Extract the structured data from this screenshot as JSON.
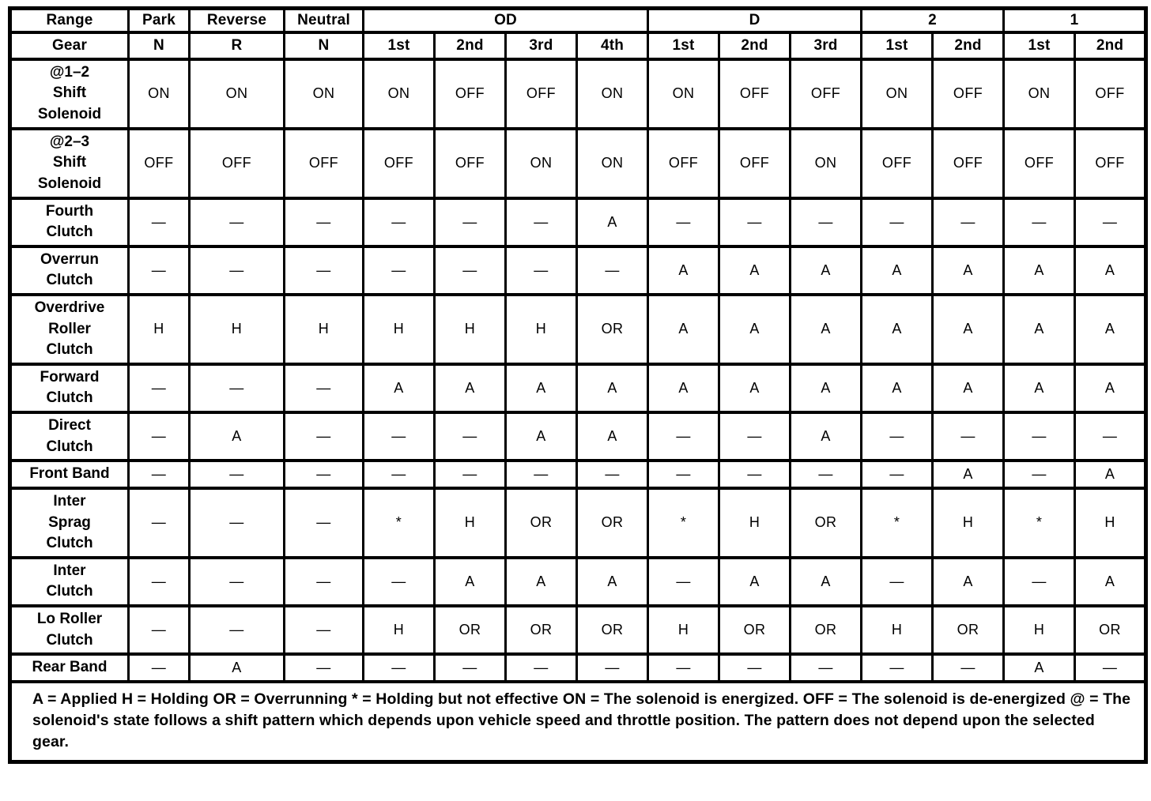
{
  "table": {
    "range_label": "Range",
    "gear_label": "Gear",
    "groups": [
      {
        "label": "Park",
        "gears": [
          "N"
        ]
      },
      {
        "label": "Reverse",
        "gears": [
          "R"
        ]
      },
      {
        "label": "Neutral",
        "gears": [
          "N"
        ]
      },
      {
        "label": "OD",
        "gears": [
          "1st",
          "2nd",
          "3rd",
          "4th"
        ]
      },
      {
        "label": "D",
        "gears": [
          "1st",
          "2nd",
          "3rd"
        ]
      },
      {
        "label": "2",
        "gears": [
          "1st",
          "2nd"
        ]
      },
      {
        "label": "1",
        "gears": [
          "1st",
          "2nd"
        ]
      }
    ],
    "rows": [
      {
        "label": "@1–2\nShift\nSolenoid",
        "values": [
          "ON",
          "ON",
          "ON",
          "ON",
          "OFF",
          "OFF",
          "ON",
          "ON",
          "OFF",
          "OFF",
          "ON",
          "OFF",
          "ON",
          "OFF"
        ]
      },
      {
        "label": "@2–3\nShift\nSolenoid",
        "values": [
          "OFF",
          "OFF",
          "OFF",
          "OFF",
          "OFF",
          "ON",
          "ON",
          "OFF",
          "OFF",
          "ON",
          "OFF",
          "OFF",
          "OFF",
          "OFF"
        ]
      },
      {
        "label": "Fourth\nClutch",
        "values": [
          "—",
          "—",
          "—",
          "—",
          "—",
          "—",
          "A",
          "—",
          "—",
          "—",
          "—",
          "—",
          "—",
          "—"
        ]
      },
      {
        "label": "Overrun\nClutch",
        "values": [
          "—",
          "—",
          "—",
          "—",
          "—",
          "—",
          "—",
          "A",
          "A",
          "A",
          "A",
          "A",
          "A",
          "A"
        ]
      },
      {
        "label": "Overdrive\nRoller\nClutch",
        "values": [
          "H",
          "H",
          "H",
          "H",
          "H",
          "H",
          "OR",
          "A",
          "A",
          "A",
          "A",
          "A",
          "A",
          "A"
        ]
      },
      {
        "label": "Forward\nClutch",
        "values": [
          "—",
          "—",
          "—",
          "A",
          "A",
          "A",
          "A",
          "A",
          "A",
          "A",
          "A",
          "A",
          "A",
          "A"
        ]
      },
      {
        "label": "Direct\nClutch",
        "values": [
          "—",
          "A",
          "—",
          "—",
          "—",
          "A",
          "A",
          "—",
          "—",
          "A",
          "—",
          "—",
          "—",
          "—"
        ]
      },
      {
        "label": "Front Band",
        "values": [
          "—",
          "—",
          "—",
          "—",
          "—",
          "—",
          "—",
          "—",
          "—",
          "—",
          "—",
          "A",
          "—",
          "A"
        ]
      },
      {
        "label": "Inter\nSprag\nClutch",
        "values": [
          "—",
          "—",
          "—",
          "*",
          "H",
          "OR",
          "OR",
          "*",
          "H",
          "OR",
          "*",
          "H",
          "*",
          "H"
        ]
      },
      {
        "label": "Inter\nClutch",
        "values": [
          "—",
          "—",
          "—",
          "—",
          "A",
          "A",
          "A",
          "—",
          "A",
          "A",
          "—",
          "A",
          "—",
          "A"
        ]
      },
      {
        "label": "Lo Roller\nClutch",
        "values": [
          "—",
          "—",
          "—",
          "H",
          "OR",
          "OR",
          "OR",
          "H",
          "OR",
          "OR",
          "H",
          "OR",
          "H",
          "OR"
        ]
      },
      {
        "label": "Rear Band",
        "values": [
          "—",
          "A",
          "—",
          "—",
          "—",
          "—",
          "—",
          "—",
          "—",
          "—",
          "—",
          "—",
          "A",
          "—"
        ]
      }
    ],
    "legend": "A = Applied H = Holding OR = Overrunning * = Holding but not effective ON = The solenoid is energized. OFF = The solenoid is de-energized @ = The solenoid's state follows a shift pattern which depends upon vehicle speed and throttle position. The pattern does not depend upon the selected gear."
  },
  "colors": {
    "ink": "#000000",
    "paper": "#ffffff"
  }
}
